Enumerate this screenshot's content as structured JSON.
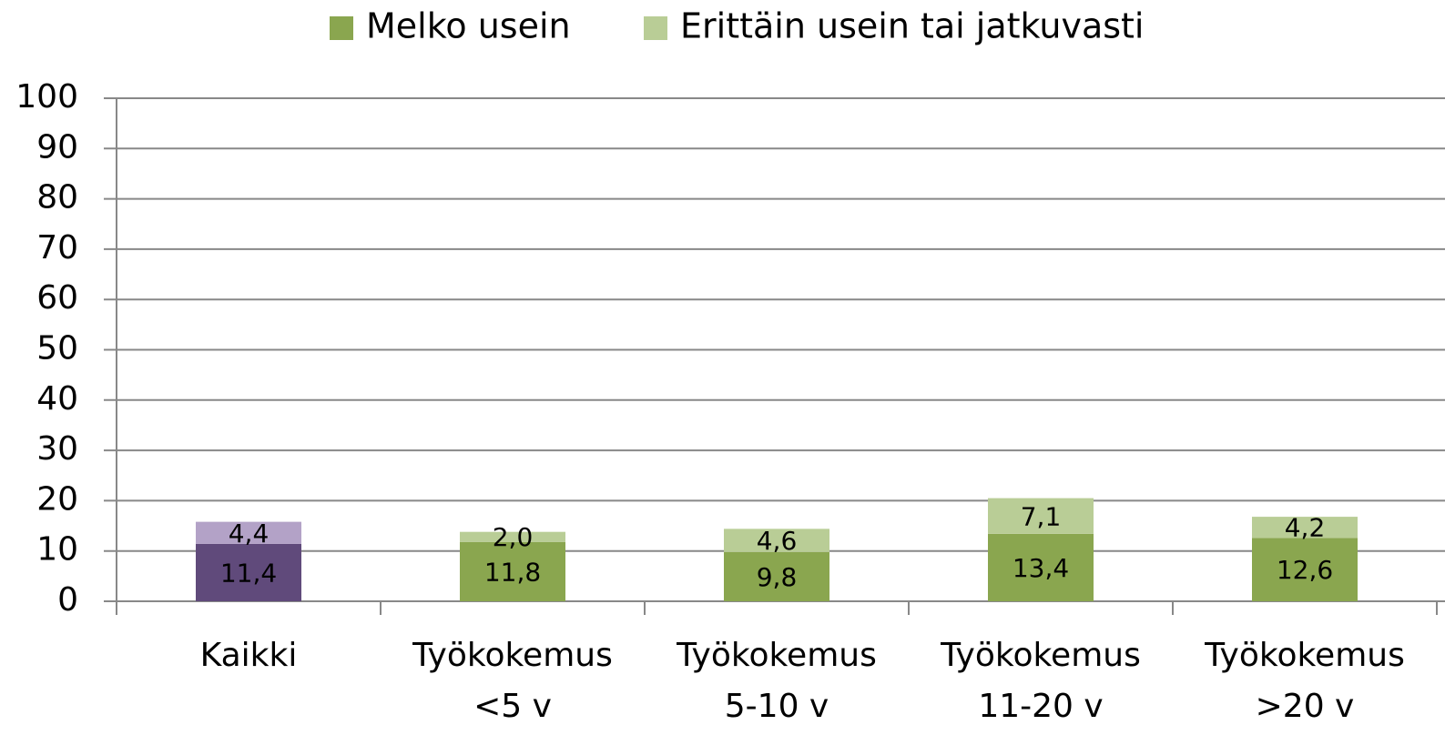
{
  "chart_data": {
    "type": "stacked_bar",
    "categories": [
      [
        "Kaikki"
      ],
      [
        "Työkokemus",
        "<5 v"
      ],
      [
        "Työkokemus",
        "5-10 v"
      ],
      [
        "Työkokemus",
        "11-20 v"
      ],
      [
        "Työkokemus",
        ">20 v"
      ]
    ],
    "series": [
      {
        "name": "Melko usein",
        "color": "#8aa64f",
        "colors": [
          "#604a7b",
          "#8aa64f",
          "#8aa64f",
          "#8aa64f",
          "#8aa64f"
        ],
        "values": [
          11.4,
          11.8,
          9.8,
          13.4,
          12.6
        ],
        "value_labels": [
          "11,4",
          "11,8",
          "9,8",
          "13,4",
          "12,6"
        ]
      },
      {
        "name": "Erittäin usein tai jatkuvasti",
        "color": "#b9cd96",
        "colors": [
          "#b3a2c7",
          "#b9cd96",
          "#b9cd96",
          "#b9cd96",
          "#b9cd96"
        ],
        "values": [
          4.4,
          2.0,
          4.6,
          7.1,
          4.2
        ],
        "value_labels": [
          "4,4",
          "2,0",
          "4,6",
          "7,1",
          "4,2"
        ]
      }
    ],
    "ylim": [
      0,
      100
    ],
    "yticks": [
      0,
      10,
      20,
      30,
      40,
      50,
      60,
      70,
      80,
      90,
      100
    ],
    "grid": true,
    "legend": "top"
  }
}
